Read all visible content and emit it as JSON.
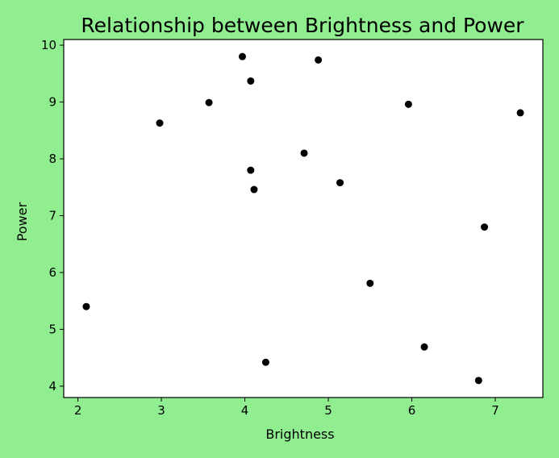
{
  "colors": {
    "figure_background": "#90ee90",
    "plot_background": "#ffffff",
    "axis_color": "#000000",
    "point_color": "#000000"
  },
  "chart_data": {
    "type": "scatter",
    "title": "Relationship between Brightness and Power",
    "xlabel": "Brightness",
    "ylabel": "Power",
    "xlim": [
      1.83,
      7.57
    ],
    "ylim": [
      3.8,
      10.1
    ],
    "xticks": [
      2,
      3,
      4,
      5,
      6,
      7
    ],
    "yticks": [
      4,
      5,
      6,
      7,
      8,
      9,
      10
    ],
    "grid": false,
    "legend": "none",
    "series": [
      {
        "name": "points",
        "x": [
          2.1,
          2.98,
          3.57,
          3.97,
          4.07,
          4.07,
          4.11,
          4.25,
          4.71,
          4.88,
          5.14,
          5.5,
          5.96,
          6.15,
          6.8,
          6.87,
          7.3
        ],
        "y": [
          5.4,
          8.63,
          8.99,
          9.8,
          9.37,
          7.8,
          7.46,
          4.42,
          8.1,
          9.74,
          7.58,
          5.81,
          8.96,
          4.69,
          4.1,
          6.8,
          8.81
        ]
      }
    ]
  }
}
